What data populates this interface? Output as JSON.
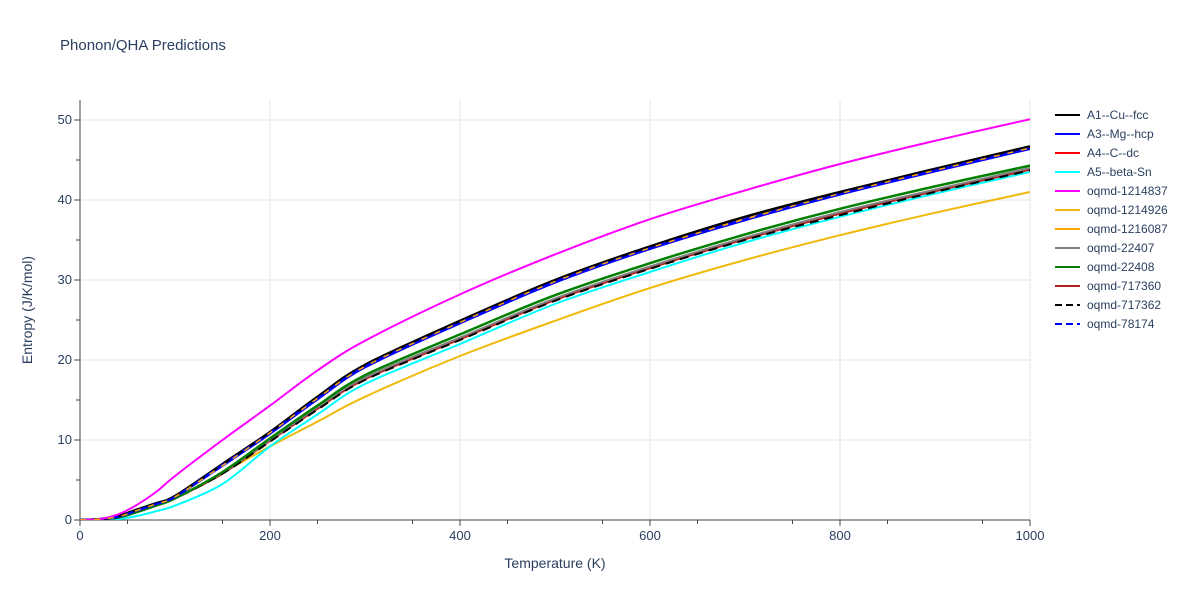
{
  "chart_data": {
    "type": "line",
    "title": "Phonon/QHA Predictions",
    "xlabel": "Temperature (K)",
    "ylabel": "Entropy (J/K/mol)",
    "xlim": [
      0,
      1000
    ],
    "ylim": [
      0,
      52.5
    ],
    "xticks": [
      0,
      200,
      400,
      600,
      800,
      1000
    ],
    "yticks": [
      0,
      10,
      20,
      30,
      40,
      50
    ],
    "grid": true,
    "legend_position": "right",
    "x": [
      0,
      20,
      40,
      60,
      80,
      100,
      150,
      200,
      250,
      300,
      400,
      500,
      600,
      700,
      800,
      900,
      1000
    ],
    "series": [
      {
        "name": "A1--Cu--fcc",
        "color": "#000000",
        "dash": "solid",
        "width": 2.5,
        "values": [
          0,
          0.1,
          0.5,
          1.3,
          2.1,
          3.0,
          7.0,
          11.0,
          15.4,
          19.4,
          24.9,
          30.0,
          34.2,
          37.9,
          41.0,
          43.9,
          46.7
        ]
      },
      {
        "name": "A3--Mg--hcp",
        "color": "#0000ff",
        "dash": "solid",
        "width": 2.5,
        "values": [
          0,
          0.1,
          0.4,
          1.2,
          2.0,
          2.9,
          6.8,
          10.8,
          15.1,
          19.1,
          24.6,
          29.7,
          33.9,
          37.5,
          40.7,
          43.6,
          46.4
        ]
      },
      {
        "name": "A4--C--dc",
        "color": "#ff0000",
        "dash": "solid",
        "width": 2,
        "values": [
          0,
          0.1,
          0.3,
          1.0,
          1.8,
          2.7,
          5.8,
          9.9,
          13.9,
          17.6,
          22.6,
          27.5,
          31.5,
          35.1,
          38.3,
          41.1,
          43.8
        ]
      },
      {
        "name": "A5--beta-Sn",
        "color": "#00ffff",
        "dash": "solid",
        "width": 2,
        "values": [
          0,
          0.0,
          0.1,
          0.5,
          1.1,
          1.8,
          4.5,
          9.2,
          13.2,
          17.0,
          22.0,
          27.0,
          31.0,
          34.7,
          37.9,
          40.8,
          43.5
        ]
      },
      {
        "name": "oqmd-1214837",
        "color": "#ff00ff",
        "dash": "solid",
        "width": 2,
        "values": [
          0,
          0.1,
          0.7,
          1.9,
          3.5,
          5.5,
          10.0,
          14.3,
          18.7,
          22.4,
          28.2,
          33.2,
          37.6,
          41.2,
          44.5,
          47.4,
          50.1
        ]
      },
      {
        "name": "oqmd-1214926",
        "color": "#f0b90b",
        "dash": "solid",
        "width": 2,
        "values": [
          0,
          0.1,
          0.3,
          1.0,
          1.8,
          2.7,
          5.9,
          9.2,
          12.3,
          15.4,
          20.5,
          24.9,
          29.0,
          32.5,
          35.6,
          38.4,
          41.0
        ]
      },
      {
        "name": "oqmd-1216087",
        "color": "#ffa500",
        "dash": "solid",
        "width": 2,
        "values": [
          0,
          0.1,
          0.4,
          1.2,
          2.0,
          2.9,
          6.8,
          10.9,
          15.2,
          19.2,
          24.7,
          29.8,
          34.0,
          37.6,
          40.8,
          43.7,
          46.5
        ]
      },
      {
        "name": "oqmd-22407",
        "color": "#808080",
        "dash": "solid",
        "width": 2,
        "values": [
          0,
          0.1,
          0.3,
          1.0,
          1.8,
          2.7,
          5.9,
          10.0,
          14.1,
          17.8,
          22.8,
          27.7,
          31.7,
          35.3,
          38.5,
          41.3,
          44.0
        ]
      },
      {
        "name": "oqmd-22408",
        "color": "#008000",
        "dash": "solid",
        "width": 2.5,
        "values": [
          0,
          0.1,
          0.3,
          1.0,
          1.8,
          2.7,
          6.0,
          10.2,
          14.3,
          18.1,
          23.2,
          28.1,
          32.1,
          35.7,
          38.9,
          41.7,
          44.3
        ]
      },
      {
        "name": "oqmd-717360",
        "color": "#b22222",
        "dash": "solid",
        "width": 2,
        "values": [
          0,
          0.1,
          0.3,
          1.0,
          1.8,
          2.7,
          5.8,
          9.9,
          13.9,
          17.6,
          22.6,
          27.5,
          31.5,
          35.1,
          38.3,
          41.1,
          43.8
        ]
      },
      {
        "name": "oqmd-717362",
        "color": "#000000",
        "dash": "dash",
        "width": 2,
        "values": [
          0,
          0.1,
          0.3,
          1.0,
          1.8,
          2.7,
          5.8,
          9.8,
          13.8,
          17.5,
          22.5,
          27.4,
          31.4,
          35.0,
          38.1,
          41.0,
          43.7
        ]
      },
      {
        "name": "oqmd-78174",
        "color": "#0000ff",
        "dash": "dash",
        "width": 2,
        "values": [
          0,
          0.1,
          0.4,
          1.2,
          2.0,
          2.9,
          6.9,
          10.9,
          15.2,
          19.2,
          24.7,
          29.8,
          34.0,
          37.6,
          40.8,
          43.7,
          46.5
        ]
      }
    ]
  }
}
